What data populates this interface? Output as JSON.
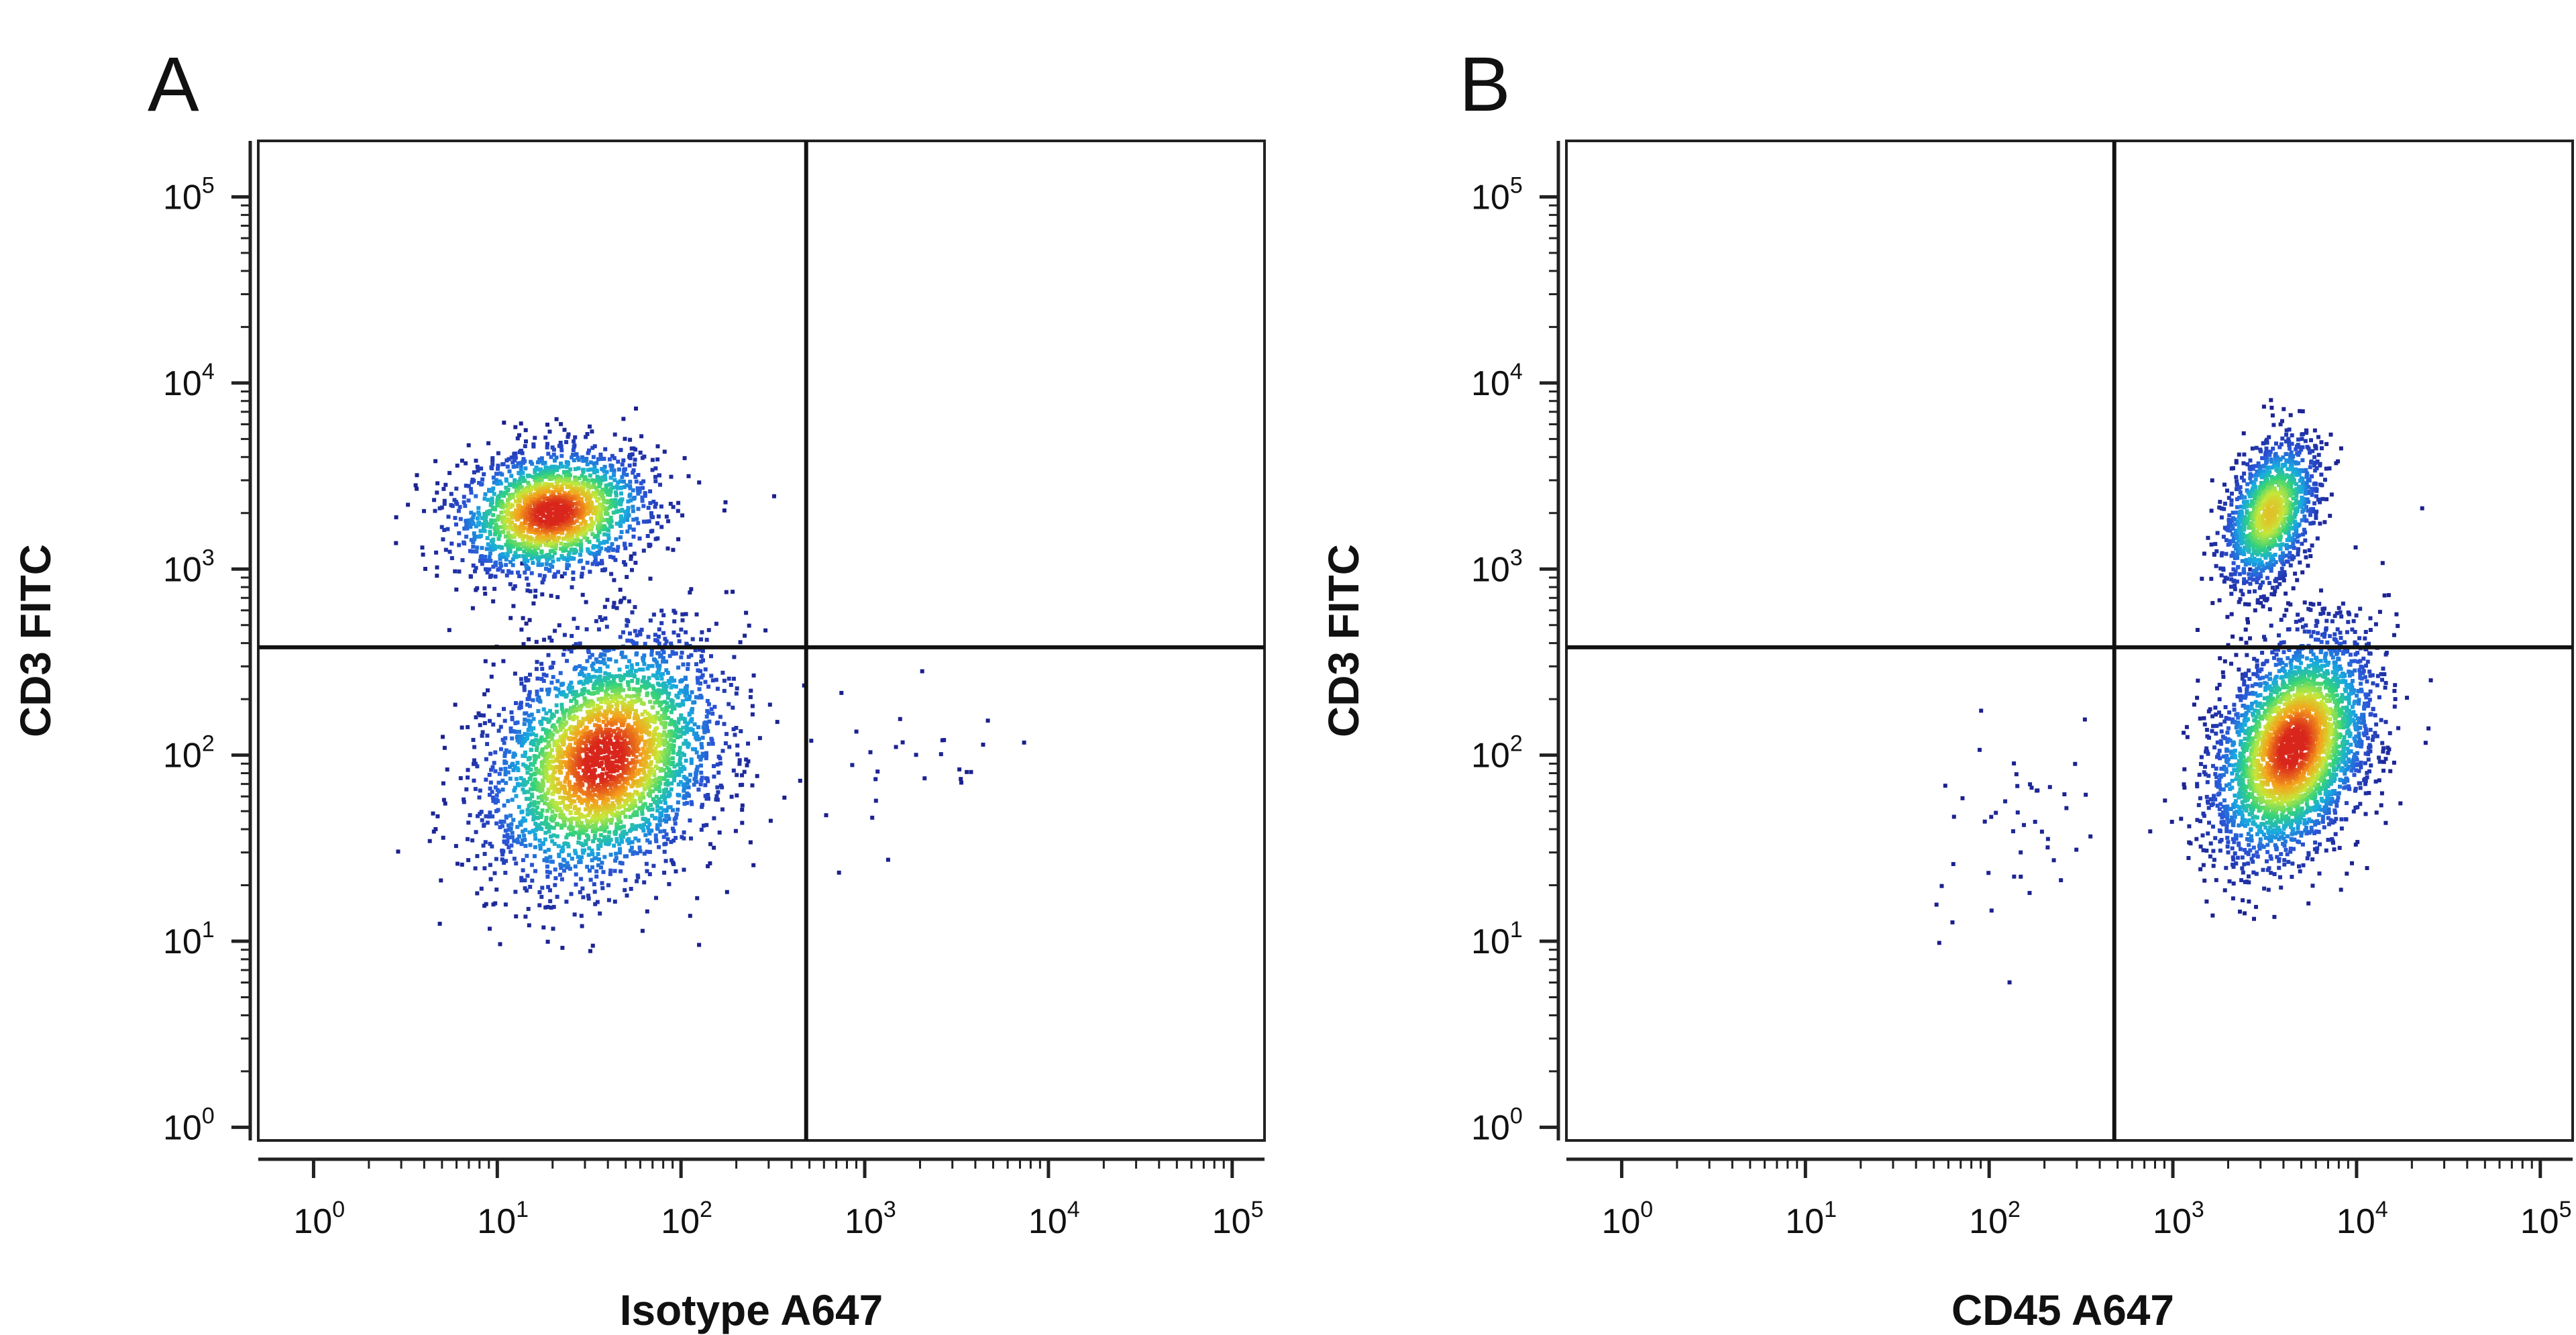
{
  "chart_data": [
    {
      "type": "scatter",
      "panel_label": "A",
      "xlabel": "Isotype A647",
      "ylabel": "CD3 FITC",
      "xscale": "log",
      "yscale": "log",
      "xlim": [
        0.5,
        150000
      ],
      "ylim": [
        0.85,
        200000
      ],
      "x_ticks": [
        {
          "base": "10",
          "exp": "0",
          "value": 1
        },
        {
          "base": "10",
          "exp": "1",
          "value": 10
        },
        {
          "base": "10",
          "exp": "2",
          "value": 100
        },
        {
          "base": "10",
          "exp": "3",
          "value": 1000
        },
        {
          "base": "10",
          "exp": "4",
          "value": 10000
        },
        {
          "base": "10",
          "exp": "5",
          "value": 100000
        }
      ],
      "y_ticks": [
        {
          "base": "10",
          "exp": "0",
          "value": 1
        },
        {
          "base": "10",
          "exp": "1",
          "value": 10
        },
        {
          "base": "10",
          "exp": "2",
          "value": 100
        },
        {
          "base": "10",
          "exp": "3",
          "value": 1000
        },
        {
          "base": "10",
          "exp": "4",
          "value": 10000
        },
        {
          "base": "10",
          "exp": "5",
          "value": 100000
        }
      ],
      "quadrant_gates": {
        "x": 480,
        "y": 380
      },
      "populations": [
        {
          "center_x": 20,
          "center_y": 2000,
          "spread_log_x": 0.26,
          "spread_log_y": 0.17,
          "count": 1900
        },
        {
          "center_x": 38,
          "center_y": 95,
          "spread_log_x": 0.3,
          "spread_log_y": 0.33,
          "count": 3200
        },
        {
          "center_x": 1400,
          "center_y": 85,
          "spread_log_x": 0.35,
          "spread_log_y": 0.2,
          "count": 30
        }
      ],
      "color_scale": [
        "#1b1f8c",
        "#2a54d6",
        "#18a9e0",
        "#33d27a",
        "#c6e83a",
        "#f4a11c",
        "#d9261c"
      ]
    },
    {
      "type": "scatter",
      "panel_label": "B",
      "xlabel": "CD45 A647",
      "ylabel": "CD3 FITC",
      "xscale": "log",
      "yscale": "log",
      "xlim": [
        0.5,
        150000
      ],
      "ylim": [
        0.85,
        200000
      ],
      "x_ticks": [
        {
          "base": "10",
          "exp": "0",
          "value": 1
        },
        {
          "base": "10",
          "exp": "1",
          "value": 10
        },
        {
          "base": "10",
          "exp": "2",
          "value": 100
        },
        {
          "base": "10",
          "exp": "3",
          "value": 1000
        },
        {
          "base": "10",
          "exp": "4",
          "value": 10000
        },
        {
          "base": "10",
          "exp": "5",
          "value": 100000
        }
      ],
      "y_ticks": [
        {
          "base": "10",
          "exp": "0",
          "value": 1
        },
        {
          "base": "10",
          "exp": "1",
          "value": 10
        },
        {
          "base": "10",
          "exp": "2",
          "value": 100
        },
        {
          "base": "10",
          "exp": "3",
          "value": 1000
        },
        {
          "base": "10",
          "exp": "4",
          "value": 10000
        },
        {
          "base": "10",
          "exp": "5",
          "value": 100000
        }
      ],
      "quadrant_gates": {
        "x": 480,
        "y": 380
      },
      "populations": [
        {
          "center_x": 3400,
          "center_y": 2000,
          "spread_log_x": 0.12,
          "spread_log_y": 0.2,
          "count": 1300
        },
        {
          "center_x": 4500,
          "center_y": 110,
          "spread_log_x": 0.2,
          "spread_log_y": 0.3,
          "count": 3200
        },
        {
          "center_x": 150,
          "center_y": 45,
          "spread_log_x": 0.25,
          "spread_log_y": 0.28,
          "count": 45
        }
      ],
      "color_scale": [
        "#1b1f8c",
        "#2a54d6",
        "#18a9e0",
        "#33d27a",
        "#c6e83a",
        "#f4a11c",
        "#d9261c"
      ]
    }
  ]
}
